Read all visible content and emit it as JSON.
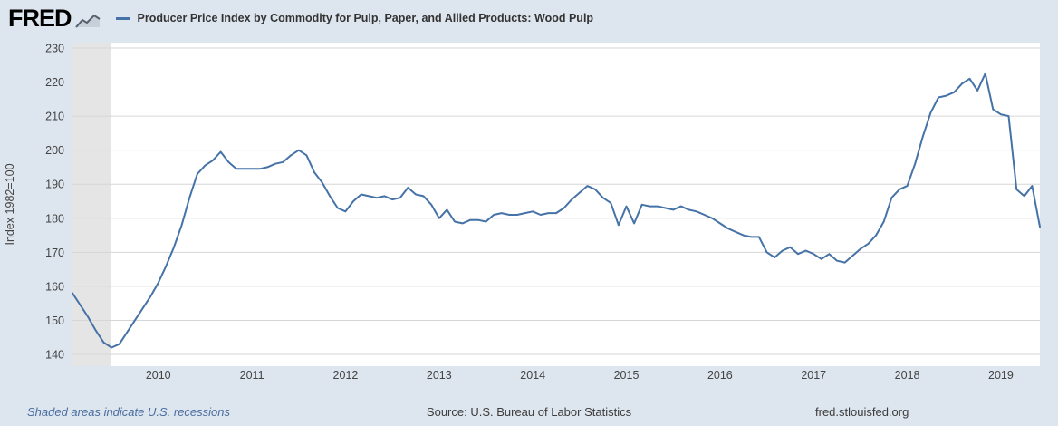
{
  "header": {
    "logo_text": "FRED",
    "legend_label": "Producer Price Index by Commodity for Pulp, Paper, and Allied Products: Wood Pulp"
  },
  "footer": {
    "recession_note": "Shaded areas indicate U.S. recessions",
    "source": "Source: U.S. Bureau of Labor Statistics",
    "site": "fred.stlouisfed.org"
  },
  "chart_data": {
    "type": "line",
    "title": "Producer Price Index by Commodity for Pulp, Paper, and Allied Products: Wood Pulp",
    "xlabel": "",
    "ylabel": "Index 1982=100",
    "ylim": [
      140,
      230
    ],
    "y_ticks": [
      140,
      150,
      160,
      170,
      180,
      190,
      200,
      210,
      220,
      230
    ],
    "x_ticks": [
      2010,
      2011,
      2012,
      2013,
      2014,
      2015,
      2016,
      2017,
      2018,
      2019
    ],
    "x_range": [
      2009.0833,
      2019.4167
    ],
    "frequency": "monthly",
    "start": "2009-02",
    "end": "2019-06",
    "grid": "horizontal",
    "legend_position": "top",
    "line_color": "#4572a7",
    "grid_color": "#d6d6d6",
    "recession_color": "#e5e5e5",
    "background_color": "#dde5ee",
    "plot_background": "#ffffff",
    "recession_bands": [
      {
        "start": 2009.0833,
        "end": 2009.5
      }
    ],
    "series": [
      {
        "name": "Producer Price Index by Commodity for Pulp, Paper, and Allied Products: Wood Pulp",
        "values": [
          158,
          154.5,
          151,
          147,
          143.5,
          142,
          143,
          146.5,
          150,
          153.5,
          157,
          161,
          166,
          171.5,
          178,
          186,
          193,
          195.5,
          197,
          199.5,
          196.5,
          194.5,
          194.5,
          194.5,
          194.5,
          195,
          196,
          196.5,
          198.5,
          200,
          198.5,
          193.5,
          190.5,
          186.5,
          183,
          182,
          185,
          187,
          186.5,
          186,
          186.5,
          185.5,
          186,
          189,
          187,
          186.5,
          184,
          180,
          182.5,
          179,
          178.5,
          179.5,
          179.5,
          179,
          181,
          181.5,
          181,
          181,
          181.5,
          182,
          181,
          181.5,
          181.5,
          183,
          185.5,
          187.5,
          189.5,
          188.5,
          186,
          184.5,
          178,
          183.5,
          178.5,
          184,
          183.5,
          183.5,
          183,
          182.5,
          183.5,
          182.5,
          182,
          181,
          180,
          178.5,
          177,
          176,
          175,
          174.5,
          174.5,
          170,
          168.5,
          170.5,
          171.5,
          169.5,
          170.5,
          169.5,
          168,
          169.5,
          167.5,
          167,
          169,
          171,
          172.5,
          175,
          179,
          186,
          188.5,
          189.5,
          196,
          204,
          211,
          215.5,
          216,
          217,
          219.5,
          221,
          217.5,
          222.5,
          212,
          210.5,
          210,
          188.5,
          186.5,
          189.5,
          177.5
        ]
      }
    ]
  }
}
